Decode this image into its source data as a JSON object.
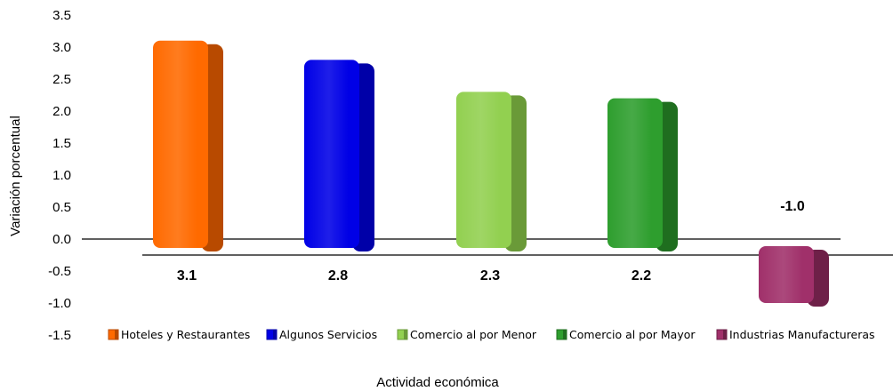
{
  "chart_data": {
    "type": "bar",
    "title": "",
    "xlabel": "Actividad económica",
    "ylabel": "Variación porcentual",
    "ylim": [
      -1.5,
      3.5
    ],
    "yticks": [
      "3.5",
      "3.0",
      "2.5",
      "2.0",
      "1.5",
      "1.0",
      "0.5",
      "0.0",
      "-0.5",
      "-1.0",
      "-1.5"
    ],
    "categories": [
      "Hoteles y Restaurantes",
      "Algunos Servicios",
      "Comercio al por Menor",
      "Comercio al por Mayor",
      "Industrias Manufactureras"
    ],
    "values": [
      3.1,
      2.8,
      2.3,
      2.2,
      -1.0
    ],
    "data_labels": [
      "3.1",
      "2.8",
      "2.3",
      "2.2",
      "-1.0"
    ],
    "colors": [
      "#ff6a00",
      "#0000e6",
      "#92d050",
      "#2e9e2e",
      "#a0306a"
    ],
    "side_colors": [
      "#b84a00",
      "#0000a8",
      "#6a9a38",
      "#1f6e1f",
      "#6e2048"
    ],
    "legend": [
      "Hoteles y Restaurantes",
      "Algunos Servicios",
      "Comercio al por Menor",
      "Comercio al por Mayor",
      "Industrias Manufactureras"
    ],
    "legend_position": "bottom",
    "grid": false
  }
}
